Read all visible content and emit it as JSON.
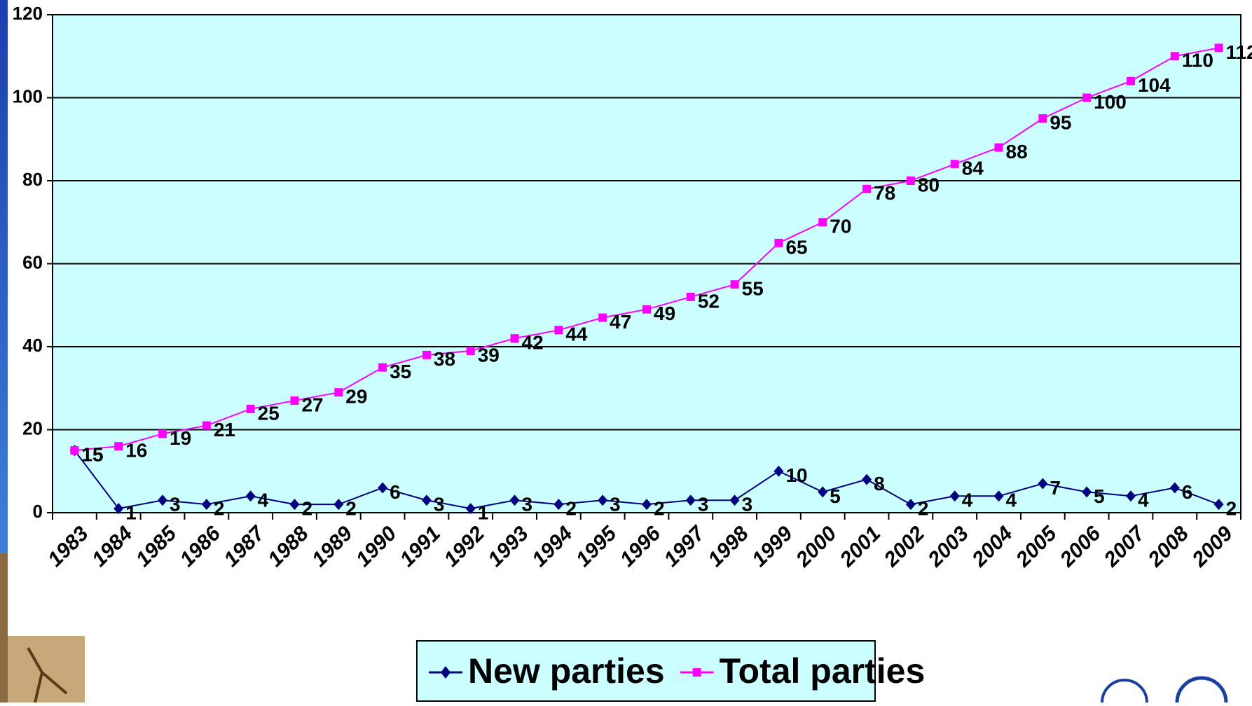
{
  "chart_data": {
    "type": "line",
    "categories": [
      "1983",
      "1984",
      "1985",
      "1986",
      "1987",
      "1988",
      "1989",
      "1990",
      "1991",
      "1992",
      "1993",
      "1994",
      "1995",
      "1996",
      "1997",
      "1998",
      "1999",
      "2000",
      "2001",
      "2002",
      "2003",
      "2004",
      "2005",
      "2006",
      "2007",
      "2008",
      "2009"
    ],
    "series": [
      {
        "name": "New parties",
        "color": "#000080",
        "marker": "diamond",
        "values": [
          15,
          1,
          3,
          2,
          4,
          2,
          2,
          6,
          3,
          1,
          3,
          2,
          3,
          2,
          3,
          3,
          10,
          5,
          8,
          2,
          4,
          4,
          7,
          5,
          4,
          6,
          2
        ]
      },
      {
        "name": "Total parties",
        "color": "#ff00ff",
        "marker": "square",
        "values": [
          15,
          16,
          19,
          21,
          25,
          27,
          29,
          35,
          38,
          39,
          42,
          44,
          47,
          49,
          52,
          55,
          65,
          70,
          78,
          80,
          84,
          88,
          95,
          100,
          104,
          110,
          112
        ]
      }
    ],
    "ylim": [
      0,
      120
    ],
    "yticks": [
      0,
      20,
      40,
      60,
      80,
      100,
      120
    ],
    "grid": true,
    "legend": "bottom"
  }
}
